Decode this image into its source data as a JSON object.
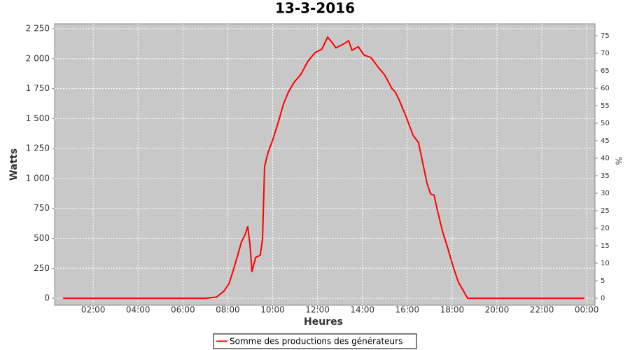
{
  "chart_data": {
    "type": "line",
    "title": "13-3-2016",
    "x_label": "Heures",
    "y_label": "Watts",
    "y2_label": "%",
    "x": [
      0.66,
      7.0,
      7.5,
      7.83,
      8.05,
      8.24,
      8.46,
      8.61,
      8.77,
      8.89,
      8.99,
      9.08,
      9.24,
      9.45,
      9.55,
      9.64,
      9.8,
      10.02,
      10.27,
      10.48,
      10.7,
      10.95,
      11.26,
      11.58,
      11.89,
      12.2,
      12.45,
      12.67,
      12.82,
      13.14,
      13.39,
      13.54,
      13.82,
      14.07,
      14.38,
      14.7,
      15.01,
      15.32,
      15.47,
      15.63,
      15.94,
      16.26,
      16.5,
      16.66,
      16.88,
      17.04,
      17.2,
      17.35,
      17.57,
      17.82,
      18.07,
      18.29,
      18.51,
      18.69,
      23.9
    ],
    "series": [
      {
        "name": "Somme des productions des  générateurs",
        "color": "#ff0000",
        "values": [
          0,
          0,
          10,
          60,
          120,
          230,
          370,
          470,
          530,
          600,
          450,
          220,
          340,
          360,
          500,
          1100,
          1220,
          1330,
          1480,
          1620,
          1720,
          1800,
          1870,
          1980,
          2050,
          2080,
          2180,
          2130,
          2090,
          2120,
          2150,
          2070,
          2100,
          2030,
          2010,
          1930,
          1860,
          1750,
          1720,
          1660,
          1520,
          1360,
          1300,
          1160,
          960,
          870,
          860,
          730,
          560,
          410,
          250,
          130,
          60,
          0,
          0
        ]
      }
    ],
    "xlim": [
      0.28,
      24.37
    ],
    "xticks": [
      {
        "value": 2,
        "label": "02:00"
      },
      {
        "value": 4,
        "label": "04:00"
      },
      {
        "value": 6,
        "label": "06:00"
      },
      {
        "value": 8,
        "label": "08:00"
      },
      {
        "value": 10,
        "label": "10:00"
      },
      {
        "value": 12,
        "label": "12:00"
      },
      {
        "value": 14,
        "label": "14:00"
      },
      {
        "value": 16,
        "label": "16:00"
      },
      {
        "value": 18,
        "label": "18:00"
      },
      {
        "value": 20,
        "label": "20:00"
      },
      {
        "value": 22,
        "label": "22:00"
      },
      {
        "value": 24,
        "label": "00:00"
      }
    ],
    "ylim": [
      -58,
      2291
    ],
    "yticks": [
      0,
      250,
      500,
      750,
      {
        "value": 1000,
        "label": "1 000"
      },
      {
        "value": 1250,
        "label": "1 250"
      },
      {
        "value": 1500,
        "label": "1 500"
      },
      {
        "value": 1750,
        "label": "1 750"
      },
      {
        "value": 2000,
        "label": "2 000"
      },
      {
        "value": 2250,
        "label": "2 250"
      }
    ],
    "y2lim": [
      -2,
      78.4
    ],
    "y2ticks": [
      0,
      5,
      10,
      15,
      20,
      25,
      30,
      35,
      40,
      45,
      50,
      55,
      60,
      65,
      70,
      75
    ],
    "grid": true,
    "legend": "bottom"
  }
}
